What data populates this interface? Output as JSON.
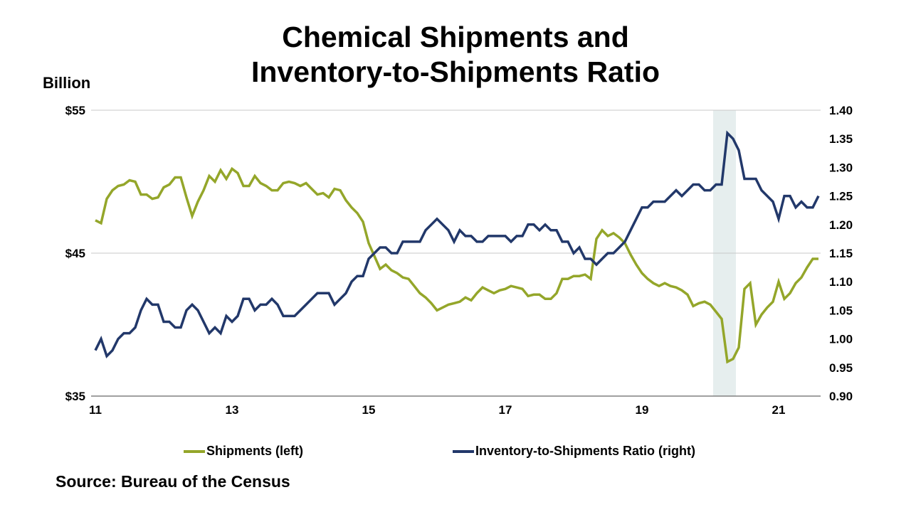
{
  "chart_data": {
    "type": "line",
    "title_lines": [
      "Chemical Shipments and",
      "Inventory-to-Shipments Ratio"
    ],
    "left_axis_unit": "Billion",
    "left_ylim": [
      35,
      55
    ],
    "left_ticks": [
      "$35",
      "$45",
      "$55"
    ],
    "left_tick_values": [
      35,
      45,
      55
    ],
    "right_ylim": [
      0.9,
      1.4
    ],
    "right_ticks": [
      "0.90",
      "0.95",
      "1.00",
      "1.05",
      "1.10",
      "1.15",
      "1.20",
      "1.25",
      "1.30",
      "1.35",
      "1.40"
    ],
    "x_start": "2011-01",
    "x_end": "2021-08",
    "x_ticks": [
      "11",
      "13",
      "15",
      "17",
      "19",
      "21"
    ],
    "x_tick_years": [
      2011,
      2013,
      2015,
      2017,
      2019,
      2021
    ],
    "grid": "horizontal",
    "legend_placement": "bottom",
    "shaded_period": {
      "start": "2020-02",
      "end": "2020-05",
      "color": "#e6eeee"
    },
    "series": [
      {
        "name": "Shipments (left)",
        "axis": "left",
        "color": "#94a62a",
        "values": [
          47.3,
          47.1,
          48.8,
          49.4,
          49.7,
          49.8,
          50.1,
          50.0,
          49.1,
          49.1,
          48.8,
          48.9,
          49.6,
          49.8,
          50.3,
          50.3,
          48.9,
          47.6,
          48.6,
          49.4,
          50.4,
          50.0,
          50.8,
          50.2,
          50.9,
          50.6,
          49.7,
          49.7,
          50.4,
          49.9,
          49.7,
          49.4,
          49.4,
          49.9,
          50.0,
          49.9,
          49.7,
          49.9,
          49.5,
          49.1,
          49.2,
          48.9,
          49.5,
          49.4,
          48.7,
          48.2,
          47.8,
          47.2,
          45.7,
          44.8,
          43.9,
          44.2,
          43.8,
          43.6,
          43.3,
          43.2,
          42.7,
          42.2,
          41.9,
          41.5,
          41.0,
          41.2,
          41.4,
          41.5,
          41.6,
          41.9,
          41.7,
          42.2,
          42.6,
          42.4,
          42.2,
          42.4,
          42.5,
          42.7,
          42.6,
          42.5,
          42.0,
          42.1,
          42.1,
          41.8,
          41.8,
          42.2,
          43.2,
          43.2,
          43.4,
          43.4,
          43.5,
          43.2,
          46.0,
          46.6,
          46.2,
          46.4,
          46.1,
          45.7,
          44.9,
          44.2,
          43.6,
          43.2,
          42.9,
          42.7,
          42.9,
          42.7,
          42.6,
          42.4,
          42.1,
          41.3,
          41.5,
          41.6,
          41.4,
          40.9,
          40.4,
          37.4,
          37.6,
          38.4,
          42.5,
          42.9,
          40.0,
          40.7,
          41.2,
          41.6,
          43.0,
          41.8,
          42.2,
          42.9,
          43.3,
          44.0,
          44.6,
          44.6
        ]
      },
      {
        "name": "Inventory-to-Shipments Ratio (right)",
        "axis": "right",
        "color": "#22386a",
        "values": [
          0.98,
          1.0,
          0.97,
          0.98,
          1.0,
          1.01,
          1.01,
          1.02,
          1.05,
          1.07,
          1.06,
          1.06,
          1.03,
          1.03,
          1.02,
          1.02,
          1.05,
          1.06,
          1.05,
          1.03,
          1.01,
          1.02,
          1.01,
          1.04,
          1.03,
          1.04,
          1.07,
          1.07,
          1.05,
          1.06,
          1.06,
          1.07,
          1.06,
          1.04,
          1.04,
          1.04,
          1.05,
          1.06,
          1.07,
          1.08,
          1.08,
          1.08,
          1.06,
          1.07,
          1.08,
          1.1,
          1.11,
          1.11,
          1.14,
          1.15,
          1.16,
          1.16,
          1.15,
          1.15,
          1.17,
          1.17,
          1.17,
          1.17,
          1.19,
          1.2,
          1.21,
          1.2,
          1.19,
          1.17,
          1.19,
          1.18,
          1.18,
          1.17,
          1.17,
          1.18,
          1.18,
          1.18,
          1.18,
          1.17,
          1.18,
          1.18,
          1.2,
          1.2,
          1.19,
          1.2,
          1.19,
          1.19,
          1.17,
          1.17,
          1.15,
          1.16,
          1.14,
          1.14,
          1.13,
          1.14,
          1.15,
          1.15,
          1.16,
          1.17,
          1.19,
          1.21,
          1.23,
          1.23,
          1.24,
          1.24,
          1.24,
          1.25,
          1.26,
          1.25,
          1.26,
          1.27,
          1.27,
          1.26,
          1.26,
          1.27,
          1.27,
          1.36,
          1.35,
          1.33,
          1.28,
          1.28,
          1.28,
          1.26,
          1.25,
          1.24,
          1.21,
          1.25,
          1.25,
          1.23,
          1.24,
          1.23,
          1.23,
          1.25
        ]
      }
    ]
  },
  "source": "Source: Bureau of the Census"
}
